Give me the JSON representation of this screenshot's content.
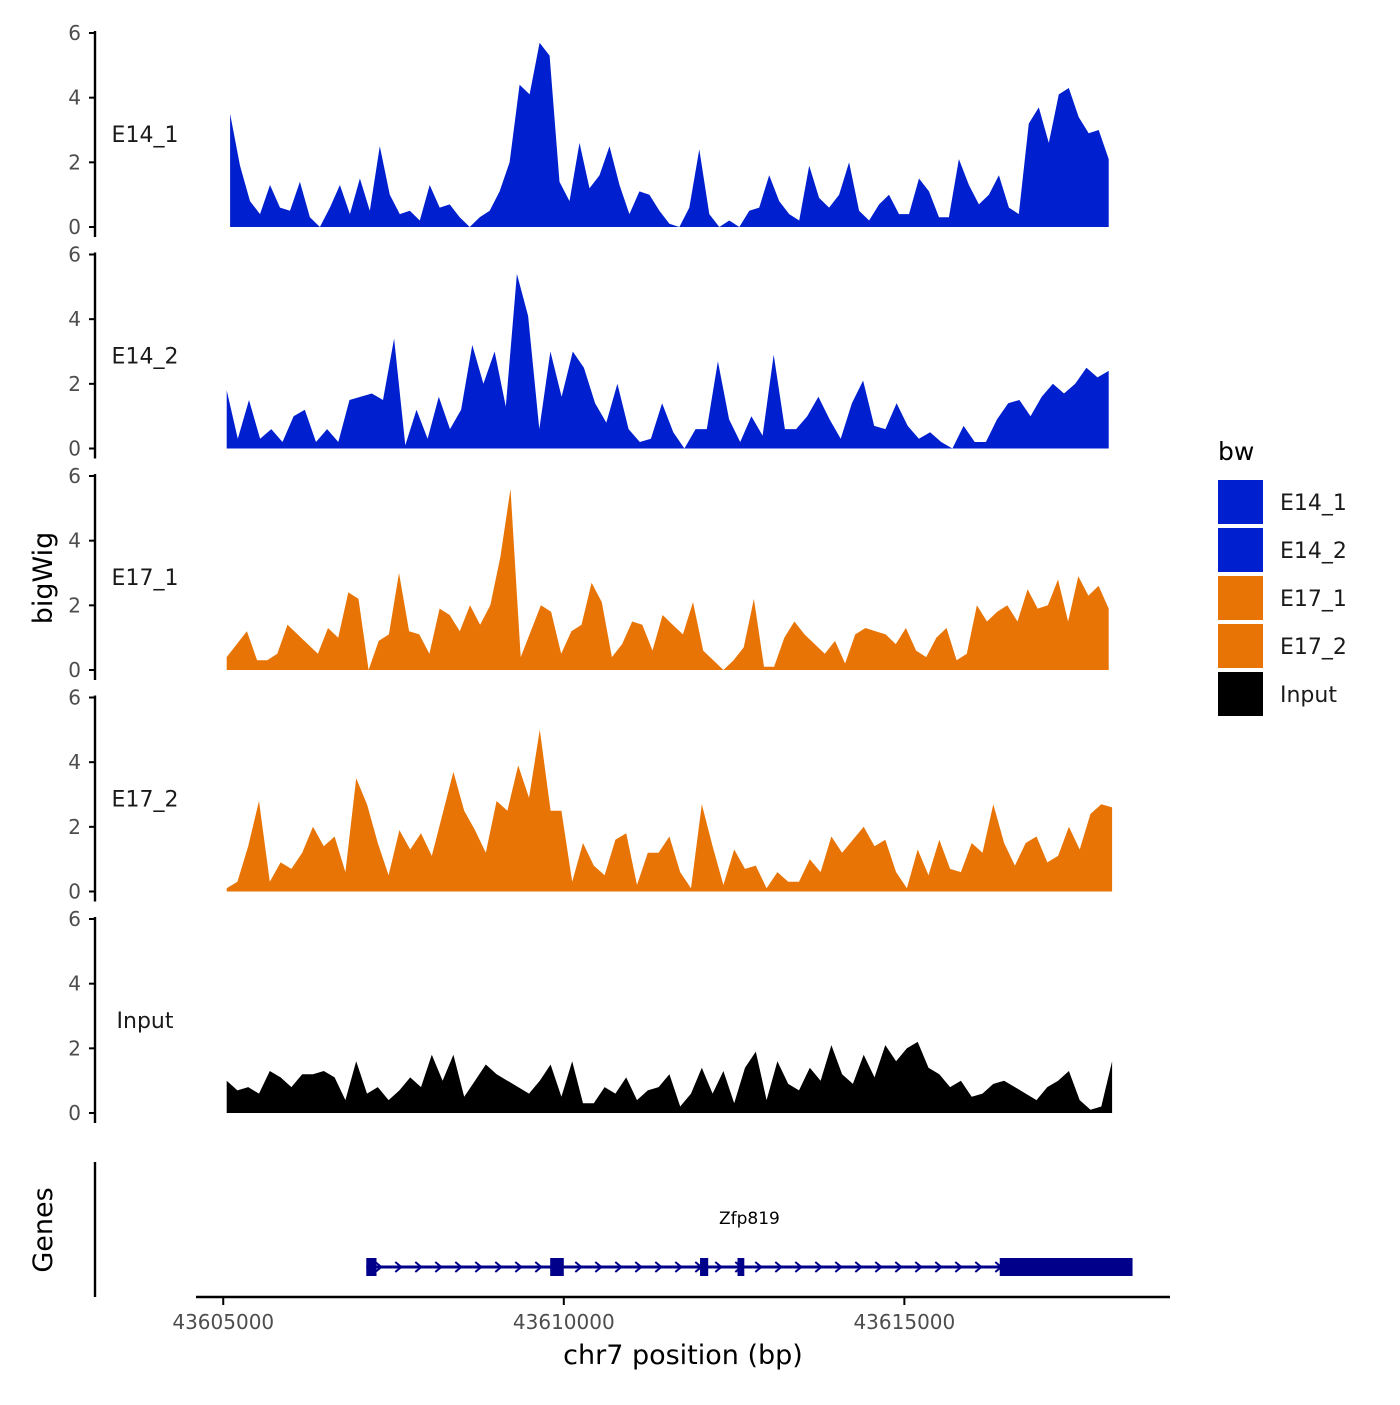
{
  "chart_data": {
    "type": "area",
    "title": "",
    "ylabel": "bigWig",
    "xlabel": "chr7 position (bp)",
    "gene_track_label": "Genes",
    "ylim": [
      0,
      6
    ],
    "yticks": [
      "0",
      "2",
      "4",
      "6"
    ],
    "xlim": [
      43604600,
      43618900
    ],
    "xticks": [
      {
        "value": 43605000,
        "label": "43605000"
      },
      {
        "value": 43610000,
        "label": "43610000"
      },
      {
        "value": 43615000,
        "label": "43615000"
      }
    ],
    "legend": {
      "title": "bw",
      "position": "right",
      "entries": [
        {
          "label": "E14_1",
          "color": "#0020D0"
        },
        {
          "label": "E14_2",
          "color": "#0020D0"
        },
        {
          "label": "E17_1",
          "color": "#E87405"
        },
        {
          "label": "E17_2",
          "color": "#E87405"
        },
        {
          "label": "Input",
          "color": "#000000"
        }
      ]
    },
    "series": [
      {
        "name": "E14_1",
        "color": "#0020D0",
        "x_start": 43605100,
        "x_end": 43618000,
        "values": [
          3.5,
          1.9,
          0.8,
          0.4,
          1.3,
          0.6,
          0.5,
          1.4,
          0.3,
          0,
          0.6,
          1.3,
          0.4,
          1.5,
          0.5,
          2.5,
          1.0,
          0.4,
          0.5,
          0.2,
          1.3,
          0.6,
          0.7,
          0.3,
          0,
          0.3,
          0.5,
          1.1,
          2.0,
          4.4,
          4.1,
          5.7,
          5.3,
          1.4,
          0.8,
          2.6,
          1.2,
          1.6,
          2.5,
          1.3,
          0.4,
          1.1,
          1.0,
          0.5,
          0.1,
          0,
          0.6,
          2.4,
          0.4,
          0,
          0.2,
          0,
          0.5,
          0.6,
          1.6,
          0.8,
          0.4,
          0.2,
          1.9,
          0.9,
          0.6,
          1.0,
          2.0,
          0.5,
          0.2,
          0.7,
          1.0,
          0.4,
          0.4,
          1.5,
          1.1,
          0.3,
          0.3,
          2.1,
          1.3,
          0.7,
          1.0,
          1.6,
          0.6,
          0.4,
          3.2,
          3.7,
          2.6,
          4.1,
          4.3,
          3.4,
          2.9,
          3.0,
          2.1
        ]
      },
      {
        "name": "E14_2",
        "color": "#0020D0",
        "x_start": 43605050,
        "x_end": 43618000,
        "values": [
          1.8,
          0.3,
          1.5,
          0.3,
          0.6,
          0.2,
          1.0,
          1.2,
          0.2,
          0.6,
          0.2,
          1.5,
          1.6,
          1.7,
          1.5,
          3.4,
          0.1,
          1.2,
          0.3,
          1.6,
          0.6,
          1.2,
          3.2,
          2.0,
          3.0,
          1.3,
          5.4,
          4.1,
          0.6,
          3.0,
          1.6,
          3.0,
          2.5,
          1.4,
          0.8,
          2.0,
          0.6,
          0.2,
          0.3,
          1.4,
          0.5,
          0,
          0.6,
          0.6,
          2.7,
          0.9,
          0.2,
          1.0,
          0.4,
          2.9,
          0.6,
          0.6,
          1.0,
          1.6,
          0.9,
          0.3,
          1.4,
          2.1,
          0.7,
          0.6,
          1.4,
          0.7,
          0.3,
          0.5,
          0.2,
          0,
          0.7,
          0.2,
          0.2,
          0.9,
          1.4,
          1.5,
          1.0,
          1.6,
          2.0,
          1.7,
          2.0,
          2.5,
          2.2,
          2.4
        ]
      },
      {
        "name": "E17_1",
        "color": "#E87405",
        "x_start": 43605050,
        "x_end": 43618000,
        "values": [
          0.4,
          0.8,
          1.2,
          0.3,
          0.3,
          0.5,
          1.4,
          1.1,
          0.8,
          0.5,
          1.3,
          1.0,
          2.4,
          2.2,
          0,
          0.9,
          1.1,
          3.0,
          1.2,
          1.1,
          0.5,
          1.9,
          1.7,
          1.2,
          2.0,
          1.4,
          2.0,
          3.5,
          5.6,
          0.4,
          1.2,
          2.0,
          1.8,
          0.5,
          1.2,
          1.4,
          2.7,
          2.1,
          0.4,
          0.8,
          1.5,
          1.4,
          0.6,
          1.7,
          1.4,
          1.1,
          2.1,
          0.6,
          0.3,
          0,
          0.3,
          0.7,
          2.2,
          0.1,
          0.1,
          1.0,
          1.5,
          1.1,
          0.8,
          0.5,
          0.9,
          0.2,
          1.1,
          1.3,
          1.2,
          1.1,
          0.8,
          1.3,
          0.6,
          0.4,
          1.0,
          1.3,
          0.3,
          0.5,
          2.0,
          1.5,
          1.8,
          2.0,
          1.5,
          2.5,
          1.9,
          2.0,
          2.8,
          1.5,
          2.9,
          2.3,
          2.6,
          1.9
        ]
      },
      {
        "name": "E17_2",
        "color": "#E87405",
        "x_start": 43605050,
        "x_end": 43618050,
        "values": [
          0.1,
          0.3,
          1.4,
          2.8,
          0.3,
          0.9,
          0.7,
          1.2,
          2.0,
          1.4,
          1.7,
          0.6,
          3.5,
          2.7,
          1.5,
          0.5,
          1.9,
          1.3,
          1.8,
          1.1,
          2.4,
          3.7,
          2.5,
          1.9,
          1.2,
          2.8,
          2.5,
          3.9,
          2.9,
          5.0,
          2.5,
          2.5,
          0.3,
          1.5,
          0.8,
          0.5,
          1.6,
          1.8,
          0.2,
          1.2,
          1.2,
          1.7,
          0.6,
          0.1,
          2.7,
          1.4,
          0.2,
          1.3,
          0.7,
          0.8,
          0.1,
          0.6,
          0.3,
          0.3,
          1.0,
          0.6,
          1.7,
          1.2,
          1.6,
          2.0,
          1.4,
          1.6,
          0.6,
          0.1,
          1.3,
          0.5,
          1.6,
          0.7,
          0.6,
          1.5,
          1.2,
          2.7,
          1.5,
          0.8,
          1.5,
          1.7,
          0.9,
          1.1,
          2.0,
          1.3,
          2.4,
          2.7,
          2.6
        ]
      },
      {
        "name": "Input",
        "color": "#000000",
        "x_start": 43605050,
        "x_end": 43618050,
        "values": [
          1.0,
          0.7,
          0.8,
          0.6,
          1.3,
          1.1,
          0.8,
          1.2,
          1.2,
          1.3,
          1.1,
          0.4,
          1.6,
          0.6,
          0.8,
          0.4,
          0.7,
          1.1,
          0.8,
          1.8,
          1.0,
          1.8,
          0.5,
          1.0,
          1.5,
          1.2,
          1.0,
          0.8,
          0.6,
          1.0,
          1.5,
          0.5,
          1.6,
          0.3,
          0.3,
          0.8,
          0.6,
          1.1,
          0.4,
          0.7,
          0.8,
          1.2,
          0.2,
          0.6,
          1.4,
          0.6,
          1.3,
          0.3,
          1.4,
          1.9,
          0.4,
          1.6,
          0.9,
          0.7,
          1.4,
          1.0,
          2.1,
          1.2,
          0.9,
          1.8,
          1.1,
          2.1,
          1.6,
          2.0,
          2.2,
          1.4,
          1.2,
          0.8,
          1.0,
          0.5,
          0.6,
          0.9,
          1.0,
          0.8,
          0.6,
          0.4,
          0.8,
          1.0,
          1.3,
          0.4,
          0.1,
          0.2,
          1.6
        ]
      }
    ],
    "gene": {
      "name": "Zfp819",
      "strand": "+",
      "color": "#00008B",
      "start": 43607100,
      "end": 43618350,
      "exons": [
        {
          "start": 43607100,
          "end": 43607250
        },
        {
          "start": 43609800,
          "end": 43610000
        },
        {
          "start": 43612000,
          "end": 43612120
        },
        {
          "start": 43612550,
          "end": 43612650
        },
        {
          "start": 43616400,
          "end": 43618350
        }
      ]
    }
  }
}
